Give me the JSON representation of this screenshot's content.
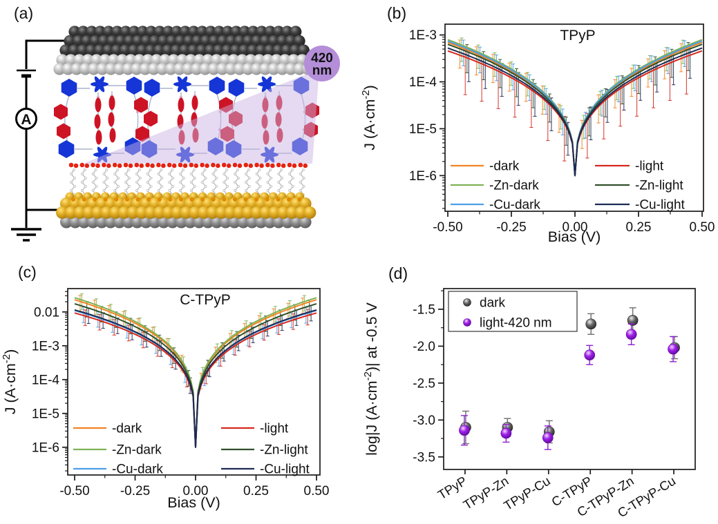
{
  "figure": {
    "background": "#ffffff"
  },
  "panel_a": {
    "label": "(a)",
    "ammeter_label": "A",
    "wavelength": {
      "line1": "420",
      "line2": "nm",
      "full": "420 nm"
    },
    "colors": {
      "wire": "#000000",
      "top_electrode_dark": "#3c3c3c",
      "top_electrode_light": "#c6c6c6",
      "gold": "#e2ae25",
      "substrate_gray": "#8f8f8f",
      "molecule_blue": "#1535d6",
      "molecule_red": "#cd1425",
      "linker_gray": "#aab4cc",
      "linker_dot_pink": "#d8a8c0",
      "beam": "#c9b2e2",
      "wavelength_circle": "#b48ed8",
      "sam_red_dot": "#e42313",
      "sam_chain": "#b8b8b8",
      "sam_atom": "#ececec",
      "sulfur_orange": "#e08900"
    }
  },
  "chart_data": [
    {
      "type": "line",
      "panel_label": "(b)",
      "title": "TPyP",
      "xlabel": "Bias (V)",
      "ylabel_parts": {
        "pre": "J  (A·cm",
        "sup": "-2",
        "post": ")"
      },
      "xlim": [
        -0.5,
        0.5
      ],
      "x_ticks": [
        {
          "v": -0.5,
          "label": "-0.50"
        },
        {
          "v": -0.25,
          "label": "-0.25"
        },
        {
          "v": 0.0,
          "label": "0.00"
        },
        {
          "v": 0.25,
          "label": "0.25"
        },
        {
          "v": 0.5,
          "label": "0.50"
        }
      ],
      "y_ticks": [
        {
          "log": -3,
          "label": "1E-3"
        },
        {
          "log": -4,
          "label": "1E-4"
        },
        {
          "log": -5,
          "label": "1E-5"
        },
        {
          "log": -6,
          "label": "1E-6"
        }
      ],
      "ylim_log": [
        -6.76,
        -2.77
      ],
      "log_j_min": -6.0,
      "shape_exponent": 0.35,
      "anchor_biases": [
        0.05,
        0.25,
        0.5
      ],
      "series": [
        {
          "name": "-dark",
          "color": "#F28422",
          "log_j_at_half": -3.16,
          "anchor_log_j": [
            -4.73,
            -3.77,
            -3.16
          ],
          "err_down": 0.45
        },
        {
          "name": "-Zn-dark",
          "color": "#7FB356",
          "log_j_at_half": -3.1,
          "anchor_log_j": [
            -4.7,
            -3.72,
            -3.1
          ],
          "err_down": 0.35
        },
        {
          "name": "-Cu-dark",
          "color": "#4D9FE8",
          "log_j_at_half": -3.13,
          "anchor_log_j": [
            -4.72,
            -3.75,
            -3.13
          ],
          "err_down": 0.4
        },
        {
          "name": "-light",
          "color": "#D6281E",
          "log_j_at_half": -3.34,
          "anchor_log_j": [
            -4.81,
            -3.91,
            -3.34
          ],
          "err_down": 0.8
        },
        {
          "name": "-Zn-light",
          "color": "#30502A",
          "log_j_at_half": -3.2,
          "anchor_log_j": [
            -4.75,
            -3.8,
            -3.2
          ],
          "err_down": 0.45
        },
        {
          "name": "-Cu-light",
          "color": "#1B2A55",
          "log_j_at_half": -3.28,
          "anchor_log_j": [
            -4.79,
            -3.87,
            -3.28
          ],
          "err_down": 0.55
        }
      ],
      "error_bars": {
        "x_start": 0.045,
        "x_step": 0.065,
        "up": 0.15
      },
      "legend": {
        "columns": [
          [
            "-dark",
            "-Zn-dark",
            "-Cu-dark"
          ],
          [
            "-light",
            "-Zn-light",
            "-Cu-light"
          ]
        ]
      }
    },
    {
      "type": "line",
      "panel_label": "(c)",
      "title": "C-TPyP",
      "xlabel": "Bias (V)",
      "ylabel_parts": {
        "pre": "J  (A·cm",
        "sup": "-2",
        "post": ")"
      },
      "xlim": [
        -0.5,
        0.5
      ],
      "x_ticks": [
        {
          "v": -0.5,
          "label": "-0.50"
        },
        {
          "v": -0.25,
          "label": "-0.25"
        },
        {
          "v": 0.0,
          "label": "0.00"
        },
        {
          "v": 0.25,
          "label": "0.25"
        },
        {
          "v": 0.5,
          "label": "0.50"
        }
      ],
      "y_ticks": [
        {
          "log": -2,
          "label": "0.01"
        },
        {
          "log": -3,
          "label": "1E-3"
        },
        {
          "log": -4,
          "label": "1E-4"
        },
        {
          "log": -5,
          "label": "1E-5"
        },
        {
          "log": -6,
          "label": "1E-6"
        }
      ],
      "ylim_log": [
        -6.82,
        -1.31
      ],
      "log_j_min": -6.0,
      "shape_exponent": 0.25,
      "anchor_biases": [
        0.05,
        0.25,
        0.5
      ],
      "series": [
        {
          "name": "-dark",
          "color": "#F28422",
          "log_j_at_half": -1.64,
          "anchor_log_j": [
            -3.55,
            -2.33,
            -1.64
          ],
          "err_down": 0.28
        },
        {
          "name": "-Zn-dark",
          "color": "#7FB356",
          "log_j_at_half": -1.58,
          "anchor_log_j": [
            -3.51,
            -2.28,
            -1.58
          ],
          "err_down": 0.28
        },
        {
          "name": "-Cu-dark",
          "color": "#4D9FE8",
          "log_j_at_half": -1.96,
          "anchor_log_j": [
            -3.73,
            -2.6,
            -1.96
          ],
          "err_down": 0.28
        },
        {
          "name": "-light",
          "color": "#D6281E",
          "log_j_at_half": -2.03,
          "anchor_log_j": [
            -3.77,
            -2.66,
            -2.03
          ],
          "err_down": 0.28
        },
        {
          "name": "-Zn-light",
          "color": "#30502A",
          "log_j_at_half": -1.76,
          "anchor_log_j": [
            -3.62,
            -2.43,
            -1.76
          ],
          "err_down": 0.28
        },
        {
          "name": "-Cu-light",
          "color": "#1B2A55",
          "log_j_at_half": -1.94,
          "anchor_log_j": [
            -3.72,
            -2.59,
            -1.94
          ],
          "err_down": 0.28
        }
      ],
      "error_bars": {
        "x_start": 0.04,
        "x_step": 0.06,
        "up": 0.18
      },
      "legend": {
        "columns": [
          [
            "-dark",
            "-Zn-dark",
            "-Cu-dark"
          ],
          [
            "-light",
            "-Zn-light",
            "-Cu-light"
          ]
        ]
      }
    },
    {
      "type": "scatter",
      "panel_label": "(d)",
      "ylabel_parts": {
        "pre": "log|J (A·cm",
        "sup": "-2",
        "post": ")| at -0.5 V"
      },
      "categories": [
        "TPyP",
        "TPyP-Zn",
        "TPyP-Cu",
        "C-TPyP",
        "C-TPyP-Zn",
        "C-TPyP-Cu"
      ],
      "y_ticks": [
        {
          "v": -1.5,
          "label": "-1.5"
        },
        {
          "v": -2.0,
          "label": "-2.0"
        },
        {
          "v": -2.5,
          "label": "-2.5"
        },
        {
          "v": -3.0,
          "label": "-3.0"
        },
        {
          "v": -3.5,
          "label": "-3.5"
        }
      ],
      "ylim": [
        -1.22,
        -3.67
      ],
      "series": [
        {
          "name": "dark",
          "color": "#5a5a5a",
          "error_color": "#6e6e6e",
          "values": [
            -3.1,
            -3.1,
            -3.16,
            -1.7,
            -1.65,
            -2.02
          ],
          "errors": [
            0.22,
            0.12,
            0.15,
            0.14,
            0.17,
            0.15
          ]
        },
        {
          "name": "light-420 nm",
          "color": "#a020e8",
          "error_color": "#8a1fd0",
          "values": [
            -3.14,
            -3.18,
            -3.24,
            -2.12,
            -1.84,
            -2.04
          ],
          "errors": [
            0.2,
            0.12,
            0.16,
            0.13,
            0.14,
            0.17
          ]
        }
      ],
      "legend": {
        "entries": [
          "dark",
          "light-420 nm"
        ]
      }
    }
  ]
}
